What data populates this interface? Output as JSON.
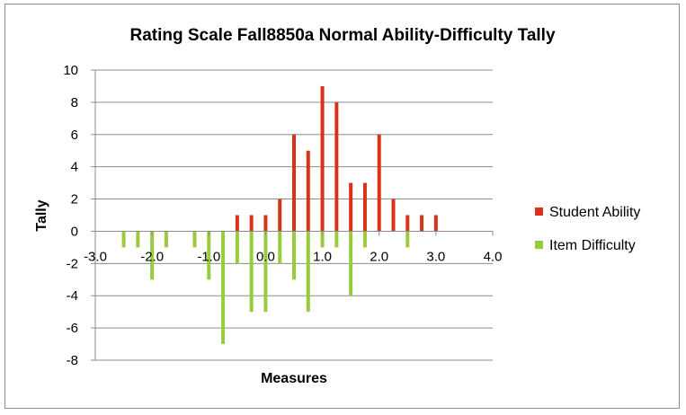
{
  "chart_data": {
    "type": "bar",
    "title": "Rating Scale Fall8850a Normal Ability-Difficulty Tally",
    "xlabel": "Measures",
    "ylabel": "Tally",
    "xlim": [
      -3.0,
      4.0
    ],
    "ylim": [
      -8,
      10
    ],
    "x_ticks": [
      "-3.0",
      "-2.0",
      "-1.0",
      "0.0",
      "1.0",
      "2.0",
      "3.0",
      "4.0"
    ],
    "y_ticks": [
      "-8",
      "-6",
      "-4",
      "-2",
      "0",
      "2",
      "4",
      "6",
      "8",
      "10"
    ],
    "grid": "horizontal",
    "legend_position": "right",
    "series": [
      {
        "name": "Student Ability",
        "color": "#d9321b",
        "points": [
          {
            "x": -0.5,
            "y": 1
          },
          {
            "x": -0.25,
            "y": 1
          },
          {
            "x": 0.0,
            "y": 1
          },
          {
            "x": 0.25,
            "y": 2
          },
          {
            "x": 0.5,
            "y": 6
          },
          {
            "x": 0.75,
            "y": 5
          },
          {
            "x": 1.0,
            "y": 9
          },
          {
            "x": 1.25,
            "y": 8
          },
          {
            "x": 1.5,
            "y": 3
          },
          {
            "x": 1.75,
            "y": 3
          },
          {
            "x": 2.0,
            "y": 6
          },
          {
            "x": 2.25,
            "y": 2
          },
          {
            "x": 2.5,
            "y": 1
          },
          {
            "x": 2.75,
            "y": 1
          },
          {
            "x": 3.0,
            "y": 1
          }
        ]
      },
      {
        "name": "Item Difficulty",
        "color": "#98cc3c",
        "points": [
          {
            "x": -2.5,
            "y": -1
          },
          {
            "x": -2.25,
            "y": -1
          },
          {
            "x": -2.0,
            "y": -3
          },
          {
            "x": -1.75,
            "y": -1
          },
          {
            "x": -1.25,
            "y": -1
          },
          {
            "x": -1.0,
            "y": -3
          },
          {
            "x": -0.75,
            "y": -7
          },
          {
            "x": -0.5,
            "y": -2
          },
          {
            "x": -0.25,
            "y": -5
          },
          {
            "x": 0.0,
            "y": -5
          },
          {
            "x": 0.25,
            "y": -2
          },
          {
            "x": 0.5,
            "y": -3
          },
          {
            "x": 0.75,
            "y": -5
          },
          {
            "x": 1.0,
            "y": -1
          },
          {
            "x": 1.25,
            "y": -1
          },
          {
            "x": 1.5,
            "y": -4
          },
          {
            "x": 1.75,
            "y": -1
          },
          {
            "x": 2.5,
            "y": -1
          }
        ]
      }
    ]
  }
}
